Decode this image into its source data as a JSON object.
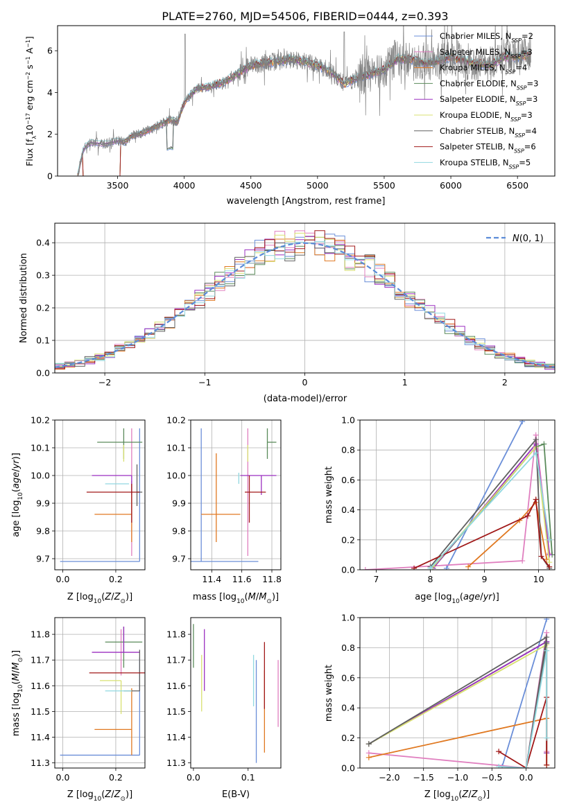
{
  "title": "PLATE=2760, MJD=54506, FIBERID=0444, z=0.393",
  "colors": {
    "chabrier_miles": "#6a8ed8",
    "salpeter_miles": "#e07fbf",
    "kroupa_miles": "#e07820",
    "chabrier_elodie": "#5a8a5a",
    "salpeter_elodie": "#9b2fc0",
    "kroupa_elodie": "#d8e070",
    "chabrier_stelib": "#606060",
    "salpeter_stelib": "#a01818",
    "kroupa_stelib": "#90d8e0",
    "data": "#808080",
    "normal": "#5b8bd8"
  },
  "chart_data": [
    {
      "id": "spectrum",
      "type": "line",
      "xlabel": "wavelength [Angstrom, rest frame]",
      "ylabel": "Flux [f_λ10^-17 erg cm^-2 s^-1 A^-1]",
      "xlim": [
        3050,
        6780
      ],
      "ylim": [
        0,
        7.2
      ],
      "xticks": [
        3500,
        4000,
        4500,
        5000,
        5500,
        6000,
        6500
      ],
      "yticks": [
        0,
        2,
        4,
        6
      ],
      "grid": false,
      "legend_position": "top-right",
      "legend": [
        {
          "label": "Chabrier MILES, N",
          "sub": "SSP",
          "tail": "=2",
          "color": "chabrier_miles"
        },
        {
          "label": "Salpeter MILES, N",
          "sub": "SSP",
          "tail": "=3",
          "color": "salpeter_miles"
        },
        {
          "label": "Kroupa MILES, N",
          "sub": "SSP",
          "tail": "=4",
          "color": "kroupa_miles"
        },
        {
          "label": "Chabrier ELODIE, N",
          "sub": "SSP",
          "tail": "=3",
          "color": "chabrier_elodie"
        },
        {
          "label": "Salpeter ELODIE, N",
          "sub": "SSP",
          "tail": "=3",
          "color": "salpeter_elodie"
        },
        {
          "label": "Kroupa ELODIE, N",
          "sub": "SSP",
          "tail": "=3",
          "color": "kroupa_elodie"
        },
        {
          "label": "Chabrier STELIB, N",
          "sub": "SSP",
          "tail": "=4",
          "color": "chabrier_stelib"
        },
        {
          "label": "Salpeter STELIB, N",
          "sub": "SSP",
          "tail": "=6",
          "color": "salpeter_stelib"
        },
        {
          "label": "Kroupa STELIB, N",
          "sub": "SSP",
          "tail": "=5",
          "color": "kroupa_stelib"
        }
      ],
      "continuum": {
        "x": [
          3200,
          3240,
          3260,
          3300,
          3400,
          3500,
          3550,
          3600,
          3700,
          3800,
          3900,
          3950,
          4000,
          4050,
          4100,
          4200,
          4300,
          4400,
          4500,
          4600,
          4700,
          4800,
          4900,
          5000,
          5100,
          5200,
          5300,
          5400,
          5500,
          5600,
          5700,
          5800,
          5900,
          6000,
          6100,
          6200,
          6300,
          6400,
          6500,
          6600
        ],
        "y": [
          0.0,
          1.2,
          1.45,
          1.6,
          1.55,
          1.7,
          1.6,
          1.9,
          2.1,
          2.4,
          2.7,
          2.6,
          3.5,
          3.9,
          4.2,
          4.3,
          4.5,
          4.9,
          5.3,
          5.4,
          5.5,
          5.6,
          5.5,
          5.3,
          5.0,
          4.4,
          4.7,
          4.9,
          5.1,
          5.6,
          5.6,
          5.4,
          5.5,
          5.7,
          5.5,
          5.4,
          5.3,
          5.7,
          5.7,
          5.8
        ]
      }
    },
    {
      "id": "residuals",
      "type": "histogram",
      "xlabel": "(data-model)/error",
      "ylabel": "Normed distribution",
      "xlim": [
        -2.5,
        2.5
      ],
      "ylim": [
        0,
        0.46
      ],
      "xticks": [
        -2,
        -1,
        0,
        1,
        2
      ],
      "yticks": [
        0.0,
        0.1,
        0.2,
        0.3,
        0.4
      ],
      "grid": true,
      "legend_position": "top-right",
      "legend": [
        {
          "label": "N(0, 1)",
          "color": "normal"
        }
      ],
      "bins": 50,
      "gaussian": {
        "mu": 0,
        "sigma": 1
      }
    },
    {
      "id": "z_age",
      "type": "errorbar",
      "xlabel": "Z [log10(Z/Z⊙)]",
      "ylabel": "age [log10(age/yr)]",
      "xlim": [
        -0.03,
        0.31
      ],
      "ylim": [
        9.66,
        10.2
      ],
      "xticks": [
        0.0,
        0.2
      ],
      "yticks": [
        9.7,
        9.8,
        9.9,
        10.0,
        10.1,
        10.2
      ],
      "grid": true,
      "points": [
        {
          "series": "chabrier_miles",
          "x": 0.29,
          "xerr": [
            0.3,
            0.0
          ],
          "y": 9.69,
          "yerr": [
            0.0,
            0.48
          ]
        },
        {
          "series": "salpeter_miles",
          "x": 0.26,
          "xerr": [
            0.0,
            0.0
          ],
          "y": 9.93,
          "yerr": [
            0.22,
            0.24
          ]
        },
        {
          "series": "kroupa_miles",
          "x": 0.26,
          "xerr": [
            0.14,
            0.0
          ],
          "y": 9.86,
          "yerr": [
            0.1,
            0.12
          ]
        },
        {
          "series": "chabrier_elodie",
          "x": 0.23,
          "xerr": [
            0.1,
            0.07
          ],
          "y": 10.12,
          "yerr": [
            0.06,
            0.05
          ]
        },
        {
          "series": "salpeter_elodie",
          "x": 0.26,
          "xerr": [
            0.15,
            0.0
          ],
          "y": 10.0,
          "yerr": [
            0.07,
            0.0
          ]
        },
        {
          "series": "kroupa_elodie",
          "x": 0.23,
          "xerr": [
            0.0,
            0.0
          ],
          "y": 10.09,
          "yerr": [
            0.04,
            0.02
          ]
        },
        {
          "series": "chabrier_stelib",
          "x": 0.28,
          "xerr": [
            0.0,
            0.02
          ],
          "y": 9.94,
          "yerr": [
            0.05,
            0.1
          ]
        },
        {
          "series": "salpeter_stelib",
          "x": 0.26,
          "xerr": [
            0.17,
            0.03
          ],
          "y": 9.94,
          "yerr": [
            0.11,
            0.03
          ]
        },
        {
          "series": "kroupa_stelib",
          "x": 0.25,
          "xerr": [
            0.09,
            0.0
          ],
          "y": 9.97,
          "yerr": [
            0.0,
            0.0
          ]
        }
      ]
    },
    {
      "id": "mass_age",
      "type": "errorbar",
      "xlabel": "mass [log10(M/M⊙)]",
      "ylabel": "",
      "xlim": [
        11.26,
        11.86
      ],
      "ylim": [
        9.66,
        10.2
      ],
      "xticks": [
        11.4,
        11.6,
        11.8
      ],
      "yticks": [
        9.7,
        9.8,
        9.9,
        10.0,
        10.1,
        10.2
      ],
      "grid": true,
      "points": [
        {
          "series": "chabrier_miles",
          "x": 11.33,
          "xerr": [
            0.08,
            0.38
          ],
          "y": 9.69,
          "yerr": [
            0.0,
            0.48
          ]
        },
        {
          "series": "salpeter_miles",
          "x": 11.64,
          "xerr": [
            0.0,
            0.0
          ],
          "y": 9.93,
          "yerr": [
            0.22,
            0.24
          ]
        },
        {
          "series": "kroupa_miles",
          "x": 11.43,
          "xerr": [
            0.1,
            0.16
          ],
          "y": 9.86,
          "yerr": [
            0.1,
            0.22
          ]
        },
        {
          "series": "chabrier_elodie",
          "x": 11.77,
          "xerr": [
            0.0,
            0.06
          ],
          "y": 10.12,
          "yerr": [
            0.06,
            0.05
          ]
        },
        {
          "series": "salpeter_elodie",
          "x": 11.73,
          "xerr": [
            0.14,
            0.1
          ],
          "y": 10.0,
          "yerr": [
            0.07,
            0.0
          ]
        },
        {
          "series": "kroupa_elodie",
          "x": 11.64,
          "xerr": [
            0.0,
            0.0
          ],
          "y": 10.09,
          "yerr": [
            0.04,
            0.02
          ]
        },
        {
          "series": "chabrier_stelib",
          "x": 11.58,
          "xerr": [
            0.0,
            0.0
          ],
          "y": 9.94,
          "yerr": [
            0.0,
            0.0
          ]
        },
        {
          "series": "salpeter_stelib",
          "x": 11.65,
          "xerr": [
            0.03,
            0.11
          ],
          "y": 9.94,
          "yerr": [
            0.11,
            0.06
          ]
        },
        {
          "series": "kroupa_stelib",
          "x": 11.58,
          "xerr": [
            0.0,
            0.0
          ],
          "y": 9.97,
          "yerr": [
            0.0,
            0.04
          ]
        }
      ]
    },
    {
      "id": "age_weight",
      "type": "line",
      "xlabel": "age [log10(age/yr)]",
      "ylabel": "mass weight",
      "xlim": [
        6.7,
        10.3
      ],
      "ylim": [
        0,
        1.0
      ],
      "xticks": [
        7,
        8,
        9,
        10
      ],
      "yticks": [
        0.0,
        0.2,
        0.4,
        0.6,
        0.8,
        1.0
      ],
      "grid": true,
      "series": [
        {
          "name": "chabrier_miles",
          "x": [
            8.3,
            9.7
          ],
          "y": [
            0.01,
            0.99
          ]
        },
        {
          "name": "salpeter_miles",
          "x": [
            6.8,
            9.7,
            9.95,
            10.2
          ],
          "y": [
            0.0,
            0.06,
            0.9,
            0.11
          ]
        },
        {
          "name": "kroupa_miles",
          "x": [
            8.7,
            9.65,
            9.95,
            10.15
          ],
          "y": [
            0.02,
            0.33,
            0.45,
            0.07
          ]
        },
        {
          "name": "chabrier_elodie",
          "x": [
            8.05,
            9.95,
            10.1,
            10.25
          ],
          "y": [
            0.01,
            0.82,
            0.84,
            0.1
          ]
        },
        {
          "name": "salpeter_elodie",
          "x": [
            8.05,
            9.95,
            10.2
          ],
          "y": [
            0.01,
            0.84,
            0.1
          ]
        },
        {
          "name": "kroupa_elodie",
          "x": [
            8.05,
            9.95,
            10.2
          ],
          "y": [
            0.02,
            0.82,
            0.05
          ]
        },
        {
          "name": "chabrier_stelib",
          "x": [
            8.0,
            9.95,
            10.05,
            10.2
          ],
          "y": [
            0.02,
            0.87,
            0.09,
            0.01
          ]
        },
        {
          "name": "salpeter_stelib",
          "x": [
            7.7,
            9.8,
            9.95,
            10.05,
            10.2
          ],
          "y": [
            0.01,
            0.36,
            0.47,
            0.09,
            0.02
          ]
        },
        {
          "name": "kroupa_stelib",
          "x": [
            8.0,
            9.95,
            10.2
          ],
          "y": [
            0.01,
            0.78,
            0.2
          ]
        }
      ]
    },
    {
      "id": "z_mass",
      "type": "errorbar",
      "xlabel": "Z [log10(Z/Z⊙)]",
      "ylabel": "mass [log10(M/M⊙)]",
      "xlim": [
        -0.03,
        0.31
      ],
      "ylim": [
        11.28,
        11.865
      ],
      "xticks": [
        0.0,
        0.2
      ],
      "yticks": [
        11.3,
        11.4,
        11.5,
        11.6,
        11.7,
        11.8
      ],
      "grid": true,
      "points": [
        {
          "series": "chabrier_miles",
          "x": 0.29,
          "xerr": [
            0.3,
            0.0
          ],
          "y": 11.33,
          "yerr": [
            0.0,
            0.38
          ]
        },
        {
          "series": "salpeter_miles",
          "x": 0.22,
          "xerr": [
            0.0,
            0.0
          ],
          "y": 11.79,
          "yerr": [
            0.15,
            0.03
          ]
        },
        {
          "series": "kroupa_miles",
          "x": 0.26,
          "xerr": [
            0.14,
            0.0
          ],
          "y": 11.43,
          "yerr": [
            0.1,
            0.16
          ]
        },
        {
          "series": "chabrier_elodie",
          "x": 0.23,
          "xerr": [
            0.07,
            0.07
          ],
          "y": 11.77,
          "yerr": [
            0.1,
            0.06
          ]
        },
        {
          "series": "salpeter_elodie",
          "x": 0.23,
          "xerr": [
            0.12,
            0.06
          ],
          "y": 11.73,
          "yerr": [
            0.0,
            0.1
          ]
        },
        {
          "series": "kroupa_elodie",
          "x": 0.22,
          "xerr": [
            0.08,
            0.0
          ],
          "y": 11.62,
          "yerr": [
            0.13,
            0.0
          ]
        },
        {
          "series": "chabrier_stelib",
          "x": 0.29,
          "xerr": [
            0.06,
            0.0
          ],
          "y": 11.58,
          "yerr": [
            0.0,
            0.16
          ]
        },
        {
          "series": "salpeter_stelib",
          "x": 0.24,
          "xerr": [
            0.14,
            0.08
          ],
          "y": 11.65,
          "yerr": [
            0.0,
            0.0
          ]
        },
        {
          "series": "kroupa_stelib",
          "x": 0.24,
          "xerr": [
            0.08,
            0.02
          ],
          "y": 11.58,
          "yerr": [
            0.0,
            0.0
          ]
        }
      ]
    },
    {
      "id": "ebv_mass",
      "type": "errorbar",
      "xlabel": "E(B-V)",
      "ylabel": "",
      "xlim": [
        -0.005,
        0.16
      ],
      "ylim": [
        11.28,
        11.865
      ],
      "xticks": [
        0.0,
        0.1
      ],
      "yticks": [
        11.3,
        11.4,
        11.5,
        11.6,
        11.7,
        11.8
      ],
      "grid": false,
      "points": [
        {
          "series": "chabrier_elodie",
          "x": 0.0,
          "y": 11.75,
          "yerr": [
            0.08,
            0.09
          ]
        },
        {
          "series": "kroupa_elodie",
          "x": 0.015,
          "y": 11.61,
          "yerr": [
            0.11,
            0.11
          ]
        },
        {
          "series": "salpeter_elodie",
          "x": 0.02,
          "y": 11.68,
          "yerr": [
            0.1,
            0.14
          ]
        },
        {
          "series": "kroupa_stelib",
          "x": 0.11,
          "y": 11.62,
          "yerr": [
            0.1,
            0.1
          ]
        },
        {
          "series": "chabrier_miles",
          "x": 0.115,
          "y": 11.5,
          "yerr": [
            0.2,
            0.2
          ]
        },
        {
          "series": "kroupa_miles",
          "x": 0.13,
          "y": 11.5,
          "yerr": [
            0.16,
            0.16
          ]
        },
        {
          "series": "salpeter_stelib",
          "x": 0.13,
          "y": 11.64,
          "yerr": [
            0.13,
            0.13
          ]
        },
        {
          "series": "salpeter_miles",
          "x": 0.155,
          "y": 11.57,
          "yerr": [
            0.13,
            0.13
          ]
        }
      ]
    },
    {
      "id": "z_weight",
      "type": "line",
      "xlabel": "Z [log10(Z/Z⊙)]",
      "ylabel": "mass weight",
      "xlim": [
        -2.43,
        0.42
      ],
      "ylim": [
        0,
        1.0
      ],
      "xticks": [
        -2.0,
        -1.5,
        -1.0,
        -0.5,
        0.0
      ],
      "yticks": [
        0.0,
        0.2,
        0.4,
        0.6,
        0.8,
        1.0
      ],
      "grid": true,
      "series": [
        {
          "name": "chabrier_miles",
          "x": [
            -0.35,
            0.3
          ],
          "y": [
            0.01,
            0.99
          ]
        },
        {
          "name": "salpeter_miles",
          "x": [
            -2.3,
            0.0,
            0.3,
            0.3
          ],
          "y": [
            0.1,
            0.0,
            0.9,
            0.11
          ]
        },
        {
          "name": "kroupa_miles",
          "x": [
            -2.3,
            0.3,
            0.3
          ],
          "y": [
            0.07,
            0.33,
            0.02
          ]
        },
        {
          "name": "chabrier_elodie",
          "x": [
            -2.3,
            0.3,
            0.3
          ],
          "y": [
            0.16,
            0.84,
            0.1
          ]
        },
        {
          "name": "salpeter_elodie",
          "x": [
            -2.3,
            0.3,
            0.3
          ],
          "y": [
            0.16,
            0.84,
            0.1
          ]
        },
        {
          "name": "kroupa_elodie",
          "x": [
            -2.3,
            0.3,
            0.3
          ],
          "y": [
            0.16,
            0.82,
            0.02
          ]
        },
        {
          "name": "chabrier_stelib",
          "x": [
            -2.3,
            0.3,
            0.0,
            0.3
          ],
          "y": [
            0.16,
            0.87,
            0.0,
            0.83
          ]
        },
        {
          "name": "salpeter_stelib",
          "x": [
            -0.4,
            0.0,
            0.3,
            0.3
          ],
          "y": [
            0.11,
            0.0,
            0.47,
            0.02
          ]
        },
        {
          "name": "kroupa_stelib",
          "x": [
            -0.4,
            0.0,
            0.3,
            0.3
          ],
          "y": [
            0.01,
            0.0,
            0.78,
            0.2
          ]
        }
      ]
    }
  ]
}
